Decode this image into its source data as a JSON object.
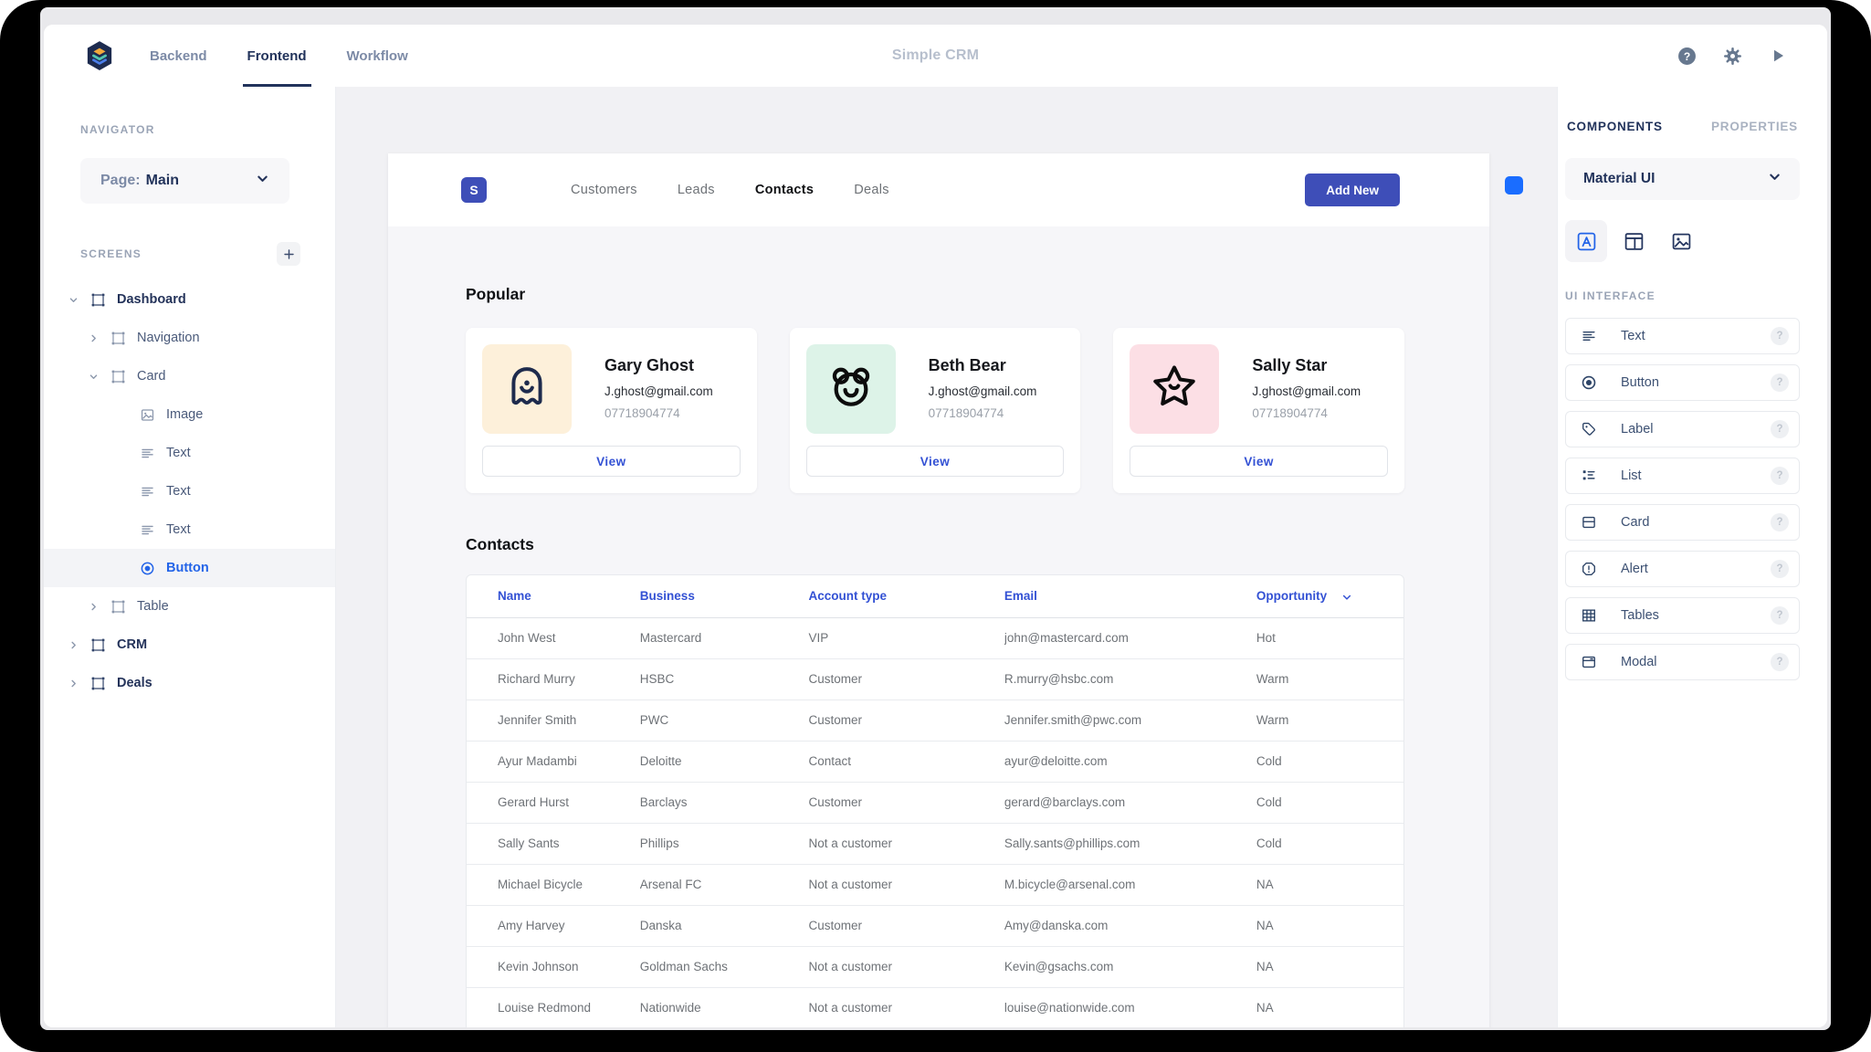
{
  "topbar": {
    "title": "Simple CRM",
    "tabs": [
      {
        "label": "Backend",
        "active": false
      },
      {
        "label": "Frontend",
        "active": true
      },
      {
        "label": "Workflow",
        "active": false
      }
    ]
  },
  "navigator": {
    "label": "NAVIGATOR",
    "page_label": "Page:",
    "page_value": "Main",
    "screens_label": "SCREENS",
    "tree": [
      {
        "label": "Dashboard",
        "level": 0,
        "expanded": true,
        "icon": "frame-icon",
        "bold": true
      },
      {
        "label": "Navigation",
        "level": 1,
        "expanded": false,
        "icon": "frame-icon"
      },
      {
        "label": "Card",
        "level": 1,
        "expanded": true,
        "icon": "frame-icon"
      },
      {
        "label": "Image",
        "level": 2,
        "icon": "image-icon"
      },
      {
        "label": "Text",
        "level": 2,
        "icon": "text-lines-icon"
      },
      {
        "label": "Text",
        "level": 2,
        "icon": "text-lines-icon"
      },
      {
        "label": "Text",
        "level": 2,
        "icon": "text-lines-icon"
      },
      {
        "label": "Button",
        "level": 2,
        "icon": "radio-button-icon",
        "selected": true
      },
      {
        "label": "Table",
        "level": 1,
        "expanded": false,
        "icon": "frame-icon"
      },
      {
        "label": "CRM",
        "level": 0,
        "expanded": false,
        "icon": "frame-icon",
        "bold": true
      },
      {
        "label": "Deals",
        "level": 0,
        "expanded": false,
        "icon": "frame-icon",
        "bold": true
      }
    ]
  },
  "canvas": {
    "logo": "S",
    "nav_tabs": [
      {
        "label": "Customers",
        "active": false
      },
      {
        "label": "Leads",
        "active": false
      },
      {
        "label": "Contacts",
        "active": true
      },
      {
        "label": "Deals",
        "active": false
      }
    ],
    "add_button_label": "Add New",
    "popular": {
      "heading": "Popular",
      "view_label": "View",
      "cards": [
        {
          "name": "Gary Ghost",
          "email": "J.ghost@gmail.com",
          "phone": "07718904774",
          "icon": "ghost-icon",
          "avatar_bg": "#fdf0da"
        },
        {
          "name": "Beth Bear",
          "email": "J.ghost@gmail.com",
          "phone": "07718904774",
          "icon": "bear-icon",
          "avatar_bg": "#ddf3e8"
        },
        {
          "name": "Sally Star",
          "email": "J.ghost@gmail.com",
          "phone": "07718904774",
          "icon": "star-icon",
          "avatar_bg": "#fcdfe5"
        }
      ]
    },
    "contacts": {
      "heading": "Contacts",
      "columns": [
        "Name",
        "Business",
        "Account type",
        "Email",
        "Opportunity"
      ],
      "sorted_column": "Opportunity",
      "rows": [
        [
          "John West",
          "Mastercard",
          "VIP",
          "john@mastercard.com",
          "Hot"
        ],
        [
          "Richard Murry",
          "HSBC",
          "Customer",
          "R.murry@hsbc.com",
          "Warm"
        ],
        [
          "Jennifer Smith",
          "PWC",
          "Customer",
          "Jennifer.smith@pwc.com",
          "Warm"
        ],
        [
          "Ayur Madambi",
          "Deloitte",
          "Contact",
          "ayur@deloitte.com",
          "Cold"
        ],
        [
          "Gerard Hurst",
          "Barclays",
          "Customer",
          "gerard@barclays.com",
          "Cold"
        ],
        [
          "Sally Sants",
          "Phillips",
          "Not a customer",
          "Sally.sants@phillips.com",
          "Cold"
        ],
        [
          "Michael Bicycle",
          "Arsenal FC",
          "Not a customer",
          "M.bicycle@arsenal.com",
          "NA"
        ],
        [
          "Amy Harvey",
          "Danska",
          "Customer",
          "Amy@danska.com",
          "NA"
        ],
        [
          "Kevin Johnson",
          "Goldman Sachs",
          "Not a customer",
          "Kevin@gsachs.com",
          "NA"
        ],
        [
          "Louise Redmond",
          "Nationwide",
          "Not a customer",
          "louise@nationwide.com",
          "NA"
        ]
      ]
    }
  },
  "panel": {
    "tabs": [
      {
        "label": "COMPONENTS",
        "active": true
      },
      {
        "label": "PROPERTIES",
        "active": false
      }
    ],
    "library": "Material UI",
    "icon_tabs": [
      {
        "icon": "text-block-icon",
        "active": true
      },
      {
        "icon": "layout-icon",
        "active": false
      },
      {
        "icon": "image-icon-large",
        "active": false
      }
    ],
    "section_label": "UI INTERFACE",
    "items": [
      {
        "label": "Text",
        "icon": "text-lines-icon"
      },
      {
        "label": "Button",
        "icon": "radio-button-icon"
      },
      {
        "label": "Label",
        "icon": "tag-icon"
      },
      {
        "label": "List",
        "icon": "list-icon"
      },
      {
        "label": "Card",
        "icon": "card-icon"
      },
      {
        "label": "Alert",
        "icon": "alert-icon"
      },
      {
        "label": "Tables",
        "icon": "table-grid-icon"
      },
      {
        "label": "Modal",
        "icon": "modal-icon"
      }
    ]
  },
  "colors": {
    "accent": "#3e4eb8",
    "link": "#3351d4",
    "selection": "#2364e8",
    "handle": "#1a6dff",
    "navy": "#22335b"
  }
}
